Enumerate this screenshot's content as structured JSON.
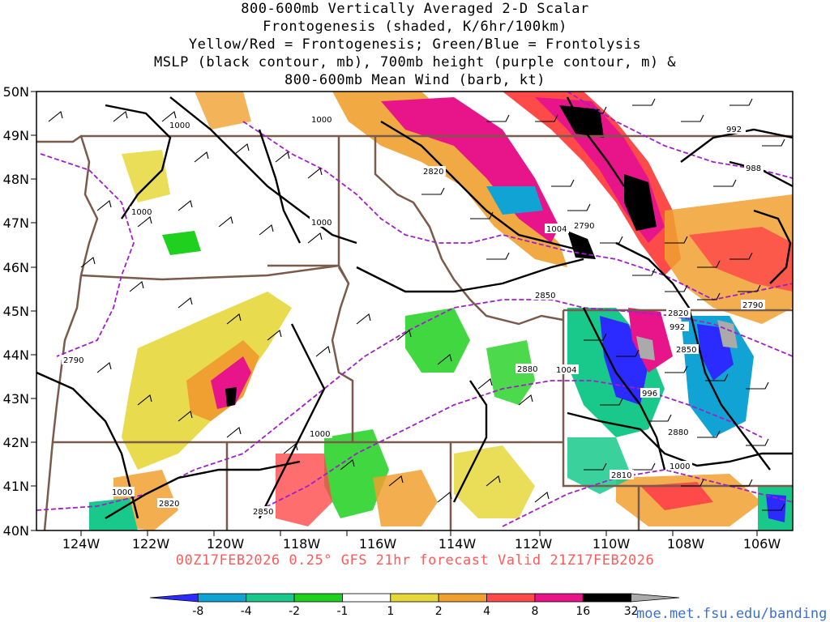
{
  "title_lines": [
    "800-600mb Vertically Averaged 2-D Scalar",
    "Frontogenesis (shaded, K/6hr/100km)",
    "Yellow/Red = Frontogenesis;  Green/Blue = Frontolysis",
    "MSLP (black contour, mb), 700mb height (purple contour, m) &",
    "800-600mb Mean Wind (barb, kt)"
  ],
  "lat_labels": [
    "50N",
    "49N",
    "48N",
    "47N",
    "46N",
    "45N",
    "44N",
    "43N",
    "42N",
    "41N",
    "40N"
  ],
  "lon_labels": [
    "124W",
    "122W",
    "120W",
    "118W",
    "116W",
    "114W",
    "112W",
    "110W",
    "108W",
    "106W"
  ],
  "valid_text": "00Z17FEB2026 0.25° GFS 21hr forecast Valid 21Z17FEB2026",
  "credit": "moe.met.fsu.edu/banding",
  "colorbar": {
    "labels": [
      "-8",
      "-4",
      "-2",
      "-1",
      "1",
      "2",
      "4",
      "8",
      "16",
      "32"
    ],
    "colors": [
      "#2b2bff",
      "#11a3d4",
      "#18c98b",
      "#1fd01f",
      "#ffffff",
      "#e6d73a",
      "#f0a030",
      "#ff4a4a",
      "#e8158a",
      "#000000",
      "#aaaaaa"
    ]
  },
  "contour_labels": {
    "mslp": [
      "1000",
      "1000",
      "1000",
      "1000",
      "1000",
      "1000",
      "1000",
      "1004",
      "1004",
      "992",
      "992",
      "988",
      "996"
    ],
    "height": [
      "2820",
      "2790",
      "2790",
      "2850",
      "2820",
      "2850",
      "2880",
      "2880",
      "2850",
      "2820",
      "2790",
      "2810"
    ]
  },
  "colors": {
    "state_border": "#7a5a4a",
    "mslp_contour": "#000000",
    "height_contour": "#a020c8"
  }
}
